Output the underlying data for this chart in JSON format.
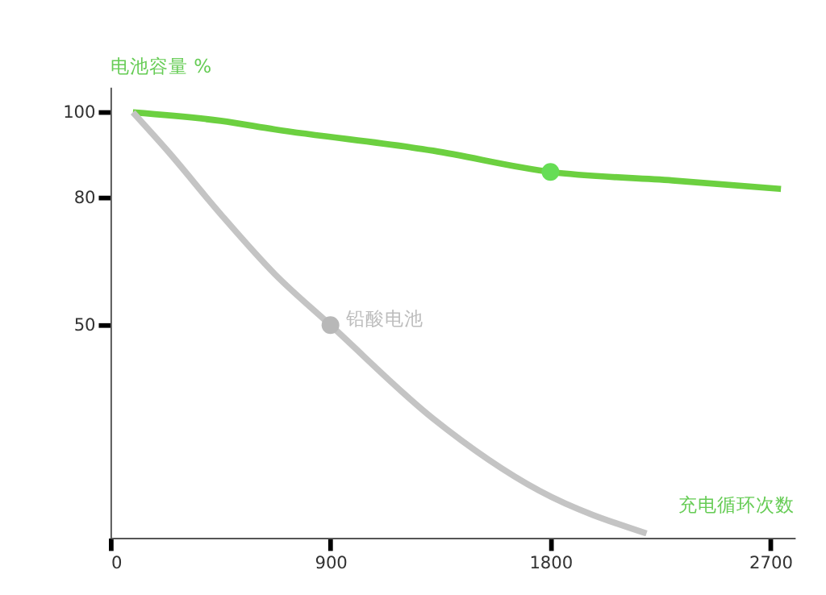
{
  "chart_data": {
    "type": "line",
    "ylabel": "电池容量 %",
    "xlabel": "充电循环次数",
    "xlim": [
      0,
      2800
    ],
    "xticks": [
      0,
      900,
      1800,
      2700
    ],
    "ylim": [
      0,
      106
    ],
    "yticks": [
      50,
      80,
      100
    ],
    "grid": false,
    "line_style": "solid",
    "series": [
      {
        "color": "#6cd040",
        "marker": "none",
        "x": [
          92,
          452,
          672,
          1320,
          1800,
          2300,
          2743
        ],
        "values": [
          100,
          98,
          96,
          91,
          86,
          84,
          82
        ]
      },
      {
        "color": "#c4c4c4",
        "marker": "none",
        "x": [
          92,
          233,
          452,
          672,
          900,
          1320,
          1756,
          2193
        ],
        "values": [
          100,
          91,
          76,
          62,
          50,
          28,
          11,
          1
        ]
      },
      {
        "type": "scatter",
        "marker": "circle",
        "color": "#66dd55",
        "x": [
          1800
        ],
        "values": [
          86
        ]
      },
      {
        "type": "scatter",
        "marker": "circle",
        "color": "#b8b8b8",
        "x": [
          900
        ],
        "values": [
          50
        ]
      }
    ],
    "annotations": [
      {
        "text": "铅酸电池",
        "x": 900,
        "y": 50
      }
    ]
  }
}
